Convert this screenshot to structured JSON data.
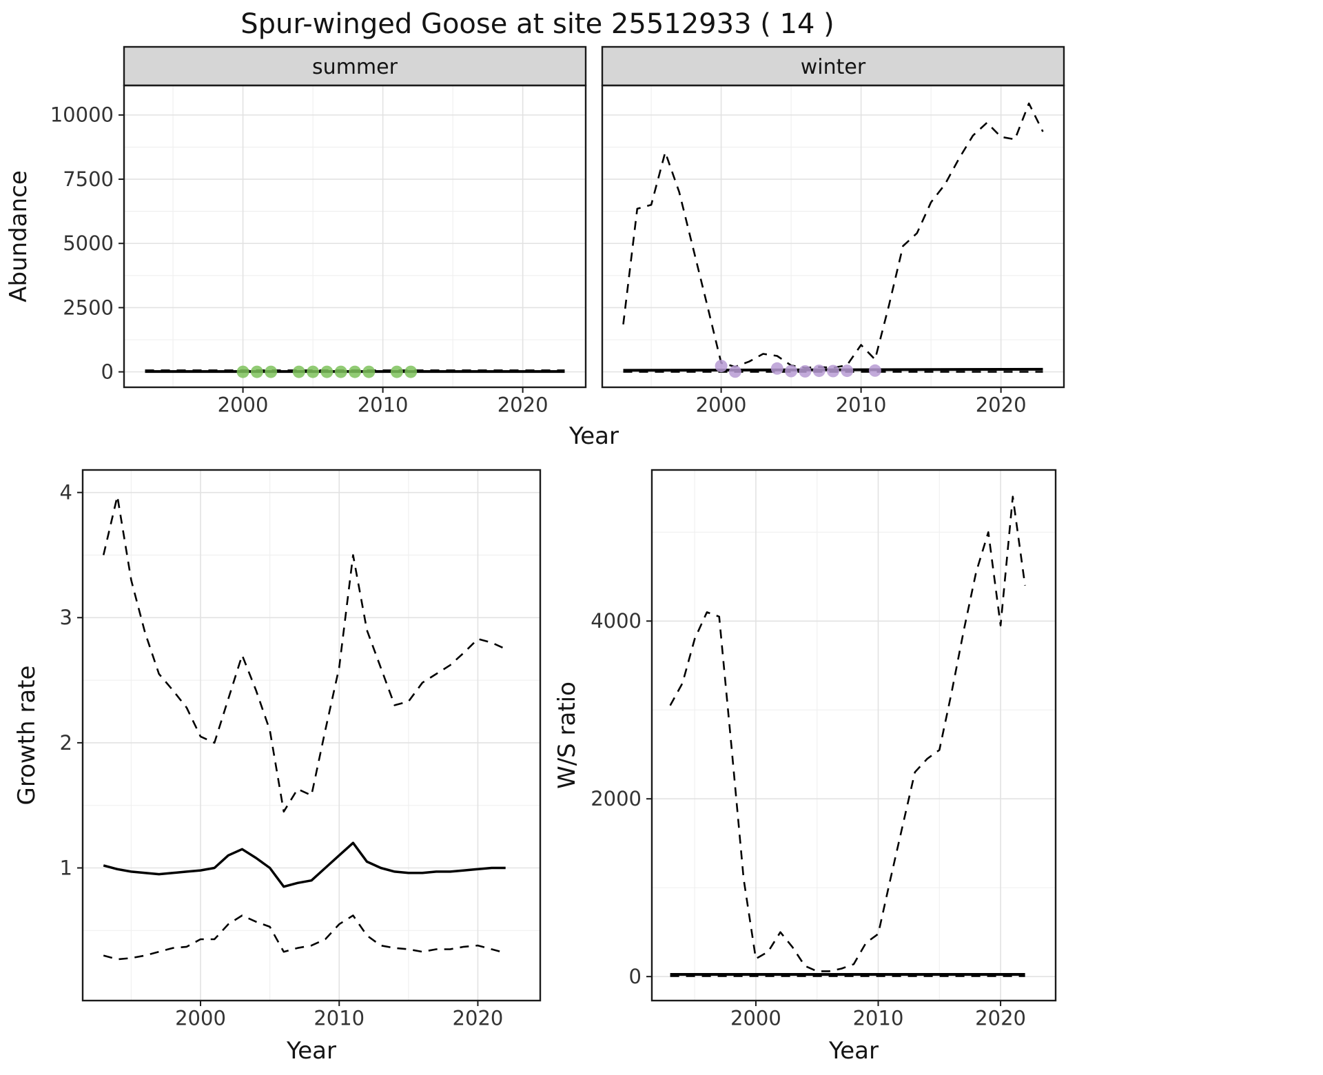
{
  "title": "Spur-winged Goose at site 25512933 ( 14 )",
  "colors": {
    "strip_fill": "#d6d6d6",
    "grid_major": "#e2e2e2",
    "grid_minor": "#f0f0f0",
    "panel_border": "#1a1a1a",
    "tick_text": "#333333",
    "axis_title_text": "#141414",
    "summer_points": "#7ec25c",
    "winter_points": "#b79bd4",
    "line_color": "#000000"
  },
  "chart_data": [
    {
      "id": "abundance",
      "type": "line",
      "xlabel": "Year",
      "ylabel": "Abundance",
      "xlim": [
        1991.5,
        2024.5
      ],
      "ylim": [
        -600,
        11150
      ],
      "xticks": [
        2000,
        2010,
        2020
      ],
      "xminor": [
        1995,
        2005,
        2015
      ],
      "yticks": [
        0,
        2500,
        5000,
        7500,
        10000
      ],
      "yminor": [
        1250,
        3750,
        6250,
        8750
      ],
      "panels": [
        {
          "strip": "summer",
          "series": [
            {
              "name": "ci-upper",
              "style": "dashed",
              "color": "#000000",
              "width": 2.6,
              "x": [
                1993,
                2023
              ],
              "y": [
                60,
                60
              ]
            },
            {
              "name": "ci-lower",
              "style": "dashed",
              "color": "#000000",
              "width": 2.6,
              "x": [
                1993,
                2023
              ],
              "y": [
                0,
                0
              ]
            },
            {
              "name": "model-fit",
              "style": "solid",
              "color": "#000000",
              "width": 4,
              "x": [
                1993,
                2023
              ],
              "y": [
                15,
                15
              ]
            },
            {
              "name": "observations",
              "style": "points",
              "color": "#7ec25c",
              "x": [
                2000,
                2001,
                2002,
                2004,
                2005,
                2006,
                2007,
                2008,
                2009,
                2011,
                2012
              ],
              "y": [
                0,
                0,
                0,
                0,
                0,
                0,
                0,
                0,
                0,
                0,
                0
              ]
            }
          ]
        },
        {
          "strip": "winter",
          "series": [
            {
              "name": "ci-upper",
              "style": "dashed",
              "color": "#000000",
              "width": 2.6,
              "x": [
                1993,
                1994,
                1995,
                1996,
                1997,
                1998,
                1999,
                2000,
                2001,
                2002,
                2003,
                2004,
                2005,
                2006,
                2007,
                2008,
                2009,
                2010,
                2011,
                2012,
                2013,
                2014,
                2015,
                2016,
                2017,
                2018,
                2019,
                2020,
                2021,
                2022,
                2023
              ],
              "y": [
                1850,
                6350,
                6500,
                8550,
                7000,
                4800,
                2600,
                350,
                200,
                400,
                700,
                620,
                250,
                160,
                190,
                160,
                260,
                1050,
                480,
                2600,
                4900,
                5400,
                6600,
                7300,
                8300,
                9200,
                9700,
                9150,
                9050,
                10450,
                9350
              ]
            },
            {
              "name": "ci-lower",
              "style": "dashed",
              "color": "#000000",
              "width": 2.6,
              "x": [
                1993,
                2023
              ],
              "y": [
                0,
                0
              ]
            },
            {
              "name": "model-fit",
              "style": "solid",
              "color": "#000000",
              "width": 4,
              "x": [
                1993,
                2023
              ],
              "y": [
                60,
                100
              ]
            },
            {
              "name": "observations",
              "style": "points",
              "color": "#b79bd4",
              "x": [
                2000,
                2001,
                2004,
                2005,
                2006,
                2007,
                2008,
                2009,
                2011
              ],
              "y": [
                230,
                10,
                130,
                30,
                20,
                40,
                30,
                40,
                50
              ]
            }
          ]
        }
      ]
    },
    {
      "id": "growth-rate",
      "type": "line",
      "xlabel": "Year",
      "ylabel": "Growth rate",
      "xlim": [
        1991.5,
        2024.5
      ],
      "ylim": [
        -0.06,
        4.18
      ],
      "xticks": [
        2000,
        2010,
        2020
      ],
      "xminor": [
        1995,
        2005,
        2015
      ],
      "yticks": [
        1,
        2,
        3,
        4
      ],
      "yminor": [
        0.5,
        1.5,
        2.5,
        3.5
      ],
      "panels": [
        {
          "strip": null,
          "series": [
            {
              "name": "ci-upper",
              "style": "dashed",
              "color": "#000000",
              "width": 2.6,
              "x": [
                1993,
                1994,
                1995,
                1996,
                1997,
                1998,
                1999,
                2000,
                2001,
                2002,
                2003,
                2004,
                2005,
                2006,
                2007,
                2008,
                2009,
                2010,
                2011,
                2012,
                2013,
                2014,
                2015,
                2016,
                2017,
                2018,
                2019,
                2020,
                2021,
                2022
              ],
              "y": [
                3.5,
                3.97,
                3.3,
                2.88,
                2.55,
                2.42,
                2.28,
                2.05,
                2.0,
                2.35,
                2.7,
                2.42,
                2.1,
                1.45,
                1.63,
                1.58,
                2.1,
                2.6,
                3.5,
                2.9,
                2.6,
                2.3,
                2.33,
                2.48,
                2.55,
                2.62,
                2.72,
                2.83,
                2.8,
                2.75
              ]
            },
            {
              "name": "ci-lower",
              "style": "dashed",
              "color": "#000000",
              "width": 2.6,
              "x": [
                1993,
                1994,
                1995,
                1996,
                1997,
                1998,
                1999,
                2000,
                2001,
                2002,
                2003,
                2004,
                2005,
                2006,
                2007,
                2008,
                2009,
                2010,
                2011,
                2012,
                2013,
                2014,
                2015,
                2016,
                2017,
                2018,
                2019,
                2020,
                2021,
                2022
              ],
              "y": [
                0.3,
                0.27,
                0.28,
                0.3,
                0.33,
                0.36,
                0.37,
                0.43,
                0.43,
                0.55,
                0.62,
                0.57,
                0.53,
                0.33,
                0.36,
                0.38,
                0.43,
                0.55,
                0.62,
                0.46,
                0.38,
                0.36,
                0.35,
                0.33,
                0.35,
                0.35,
                0.37,
                0.38,
                0.35,
                0.32
              ]
            },
            {
              "name": "model-fit",
              "style": "solid",
              "color": "#000000",
              "width": 3.5,
              "x": [
                1993,
                1994,
                1995,
                1996,
                1997,
                1998,
                1999,
                2000,
                2001,
                2002,
                2003,
                2004,
                2005,
                2006,
                2007,
                2008,
                2009,
                2010,
                2011,
                2012,
                2013,
                2014,
                2015,
                2016,
                2017,
                2018,
                2019,
                2020,
                2021,
                2022
              ],
              "y": [
                1.02,
                0.99,
                0.97,
                0.96,
                0.95,
                0.96,
                0.97,
                0.98,
                1.0,
                1.1,
                1.15,
                1.08,
                1.0,
                0.85,
                0.88,
                0.9,
                1.0,
                1.1,
                1.2,
                1.05,
                1.0,
                0.97,
                0.96,
                0.96,
                0.97,
                0.97,
                0.98,
                0.99,
                1.0,
                1.0
              ]
            }
          ]
        }
      ]
    },
    {
      "id": "ws-ratio",
      "type": "line",
      "xlabel": "Year",
      "ylabel": "W/S ratio",
      "xlim": [
        1991.5,
        2024.5
      ],
      "ylim": [
        -270,
        5700
      ],
      "xticks": [
        2000,
        2010,
        2020
      ],
      "xminor": [
        1995,
        2005,
        2015
      ],
      "yticks": [
        0,
        2000,
        4000
      ],
      "yminor": [
        1000,
        3000,
        5000
      ],
      "panels": [
        {
          "strip": null,
          "series": [
            {
              "name": "ratio-upper",
              "style": "dashed",
              "color": "#000000",
              "width": 2.6,
              "x": [
                1993,
                1994,
                1995,
                1996,
                1997,
                1998,
                1999,
                2000,
                2001,
                2002,
                2003,
                2004,
                2005,
                2006,
                2007,
                2008,
                2009,
                2010,
                2011,
                2012,
                2013,
                2014,
                2015,
                2016,
                2017,
                2018,
                2019,
                2020,
                2021,
                2022
              ],
              "y": [
                3050,
                3300,
                3800,
                4100,
                4050,
                2600,
                1100,
                200,
                280,
                500,
                330,
                120,
                60,
                60,
                90,
                140,
                380,
                480,
                1100,
                1700,
                2300,
                2450,
                2550,
                3200,
                3900,
                4550,
                5000,
                3950,
                5400,
                4400
              ]
            },
            {
              "name": "ratio-lower",
              "style": "dashed",
              "color": "#000000",
              "width": 2.6,
              "x": [
                1993,
                2022
              ],
              "y": [
                5,
                5
              ]
            },
            {
              "name": "ratio-fit",
              "style": "solid",
              "color": "#000000",
              "width": 4,
              "x": [
                1993,
                2022
              ],
              "y": [
                25,
                25
              ]
            }
          ]
        }
      ]
    }
  ]
}
